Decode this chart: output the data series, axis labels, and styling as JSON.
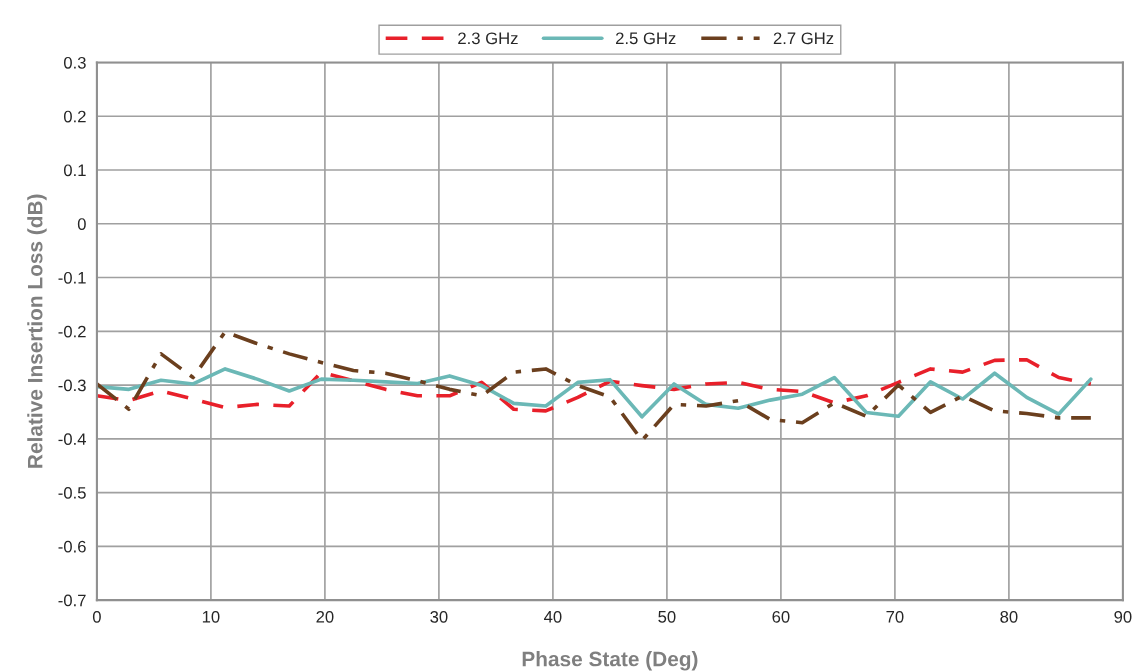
{
  "chart_data": {
    "type": "line",
    "xlabel": "Phase State (Deg)",
    "ylabel": "Relative Insertion Loss (dB)",
    "x": [
      0,
      2.8125,
      5.625,
      8.4375,
      11.25,
      14.0625,
      16.875,
      19.6875,
      22.5,
      25.3125,
      28.125,
      30.9375,
      33.75,
      36.5625,
      39.375,
      42.1875,
      45,
      47.8125,
      50.625,
      53.4375,
      56.25,
      59.0625,
      61.875,
      64.6875,
      67.5,
      70.3125,
      73.125,
      75.9375,
      78.75,
      81.5625,
      84.375,
      87.1875
    ],
    "series": [
      {
        "name": "2.3 GHz",
        "color": "#e8202a",
        "line_style": "dashed",
        "values": [
          -0.32,
          -0.329,
          -0.311,
          -0.326,
          -0.342,
          -0.336,
          -0.339,
          -0.276,
          -0.292,
          -0.308,
          -0.32,
          -0.32,
          -0.295,
          -0.345,
          -0.348,
          -0.323,
          -0.293,
          -0.301,
          -0.308,
          -0.298,
          -0.295,
          -0.308,
          -0.312,
          -0.333,
          -0.32,
          -0.295,
          -0.27,
          -0.276,
          -0.254,
          -0.253,
          -0.286,
          -0.298
        ]
      },
      {
        "name": "2.5 GHz",
        "color": "#6bb8b6",
        "line_style": "solid",
        "values": [
          -0.303,
          -0.308,
          -0.291,
          -0.298,
          -0.27,
          -0.289,
          -0.311,
          -0.289,
          -0.291,
          -0.294,
          -0.297,
          -0.283,
          -0.301,
          -0.334,
          -0.339,
          -0.295,
          -0.29,
          -0.359,
          -0.298,
          -0.336,
          -0.343,
          -0.328,
          -0.317,
          -0.286,
          -0.351,
          -0.358,
          -0.294,
          -0.326,
          -0.278,
          -0.323,
          -0.354,
          -0.289
        ]
      },
      {
        "name": "2.7 GHz",
        "color": "#6b3f1e",
        "line_style": "dashdot",
        "values": [
          -0.298,
          -0.345,
          -0.242,
          -0.286,
          -0.201,
          -0.223,
          -0.242,
          -0.258,
          -0.273,
          -0.278,
          -0.292,
          -0.308,
          -0.32,
          -0.276,
          -0.27,
          -0.301,
          -0.322,
          -0.403,
          -0.336,
          -0.339,
          -0.329,
          -0.364,
          -0.37,
          -0.333,
          -0.358,
          -0.3,
          -0.351,
          -0.32,
          -0.348,
          -0.353,
          -0.361,
          -0.361
        ]
      }
    ],
    "xlim": [
      0,
      90
    ],
    "xticks": [
      0,
      10,
      20,
      30,
      40,
      50,
      60,
      70,
      80,
      90
    ],
    "ylim": [
      -0.7,
      0.3
    ],
    "yticks": [
      -0.7,
      -0.6,
      -0.5,
      -0.4,
      -0.3,
      -0.2,
      -0.1,
      0,
      0.1,
      0.2,
      0.3
    ],
    "grid": true,
    "legend": "top",
    "marker": "none"
  }
}
